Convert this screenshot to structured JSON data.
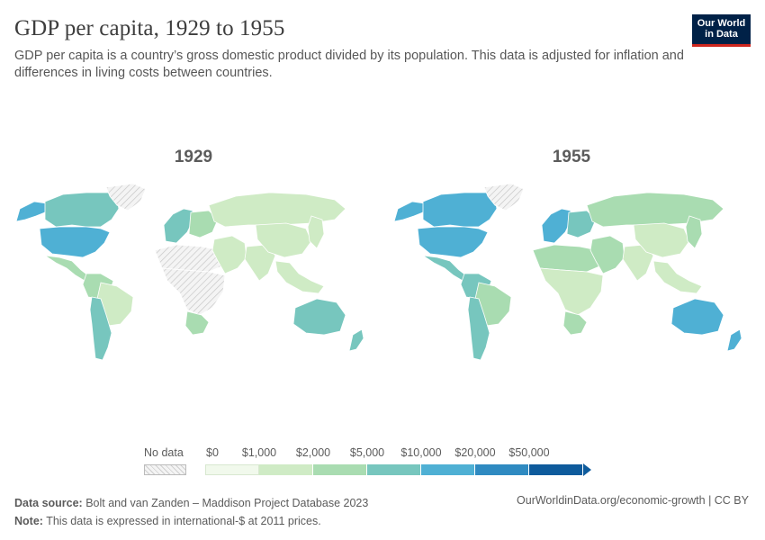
{
  "header": {
    "title": "GDP per capita, 1929 to 1955",
    "subtitle": "GDP per capita is a country’s gross domestic product divided by its population. This data is adjusted for inflation and differences in living costs between countries."
  },
  "logo": {
    "line1": "Our World",
    "line2": "in Data"
  },
  "maps": [
    {
      "year": "1929"
    },
    {
      "year": "1955"
    }
  ],
  "legend": {
    "no_data_label": "No data",
    "ticks": [
      "$0",
      "$1,000",
      "$2,000",
      "$5,000",
      "$10,000",
      "$20,000",
      "$50,000"
    ],
    "colors": [
      "#f1f9ec",
      "#cfebc5",
      "#a9dcb1",
      "#77c6be",
      "#4fb0d4",
      "#2f8ac1",
      "#0e5b9c"
    ],
    "no_data_color": "#e0e0e0"
  },
  "footer": {
    "source_label": "Data source:",
    "source_text": "Bolt and van Zanden – Maddison Project Database 2023",
    "note_label": "Note:",
    "note_text": "This data is expressed in international-$ at 2011 prices.",
    "url": "OurWorldinData.org/economic-growth | CC BY"
  },
  "regions": {
    "1929": {
      "north_america_north": "#77c6be",
      "usa": "#4fb0d4",
      "alaska": "#4fb0d4",
      "greenland": "nodata",
      "mexico_central": "#a9dcb1",
      "south_america_north": "#a9dcb1",
      "brazil": "#cfebc5",
      "southern_cone": "#77c6be",
      "western_europe": "#77c6be",
      "eastern_europe": "#a9dcb1",
      "russia": "#cfebc5",
      "north_africa": "nodata",
      "subsaharan_africa": "nodata",
      "south_africa": "#a9dcb1",
      "middle_east": "#cfebc5",
      "south_asia": "#cfebc5",
      "china": "#cfebc5",
      "east_asia": "#cfebc5",
      "southeast_asia": "#cfebc5",
      "australia": "#77c6be",
      "new_zealand": "#77c6be"
    },
    "1955": {
      "north_america_north": "#4fb0d4",
      "usa": "#4fb0d4",
      "alaska": "#4fb0d4",
      "greenland": "nodata",
      "mexico_central": "#77c6be",
      "south_america_north": "#77c6be",
      "brazil": "#a9dcb1",
      "southern_cone": "#77c6be",
      "western_europe": "#4fb0d4",
      "eastern_europe": "#77c6be",
      "russia": "#a9dcb1",
      "north_africa": "#a9dcb1",
      "subsaharan_africa": "#cfebc5",
      "south_africa": "#a9dcb1",
      "middle_east": "#a9dcb1",
      "south_asia": "#cfebc5",
      "china": "#cfebc5",
      "east_asia": "#a9dcb1",
      "southeast_asia": "#cfebc5",
      "australia": "#4fb0d4",
      "new_zealand": "#4fb0d4"
    }
  }
}
